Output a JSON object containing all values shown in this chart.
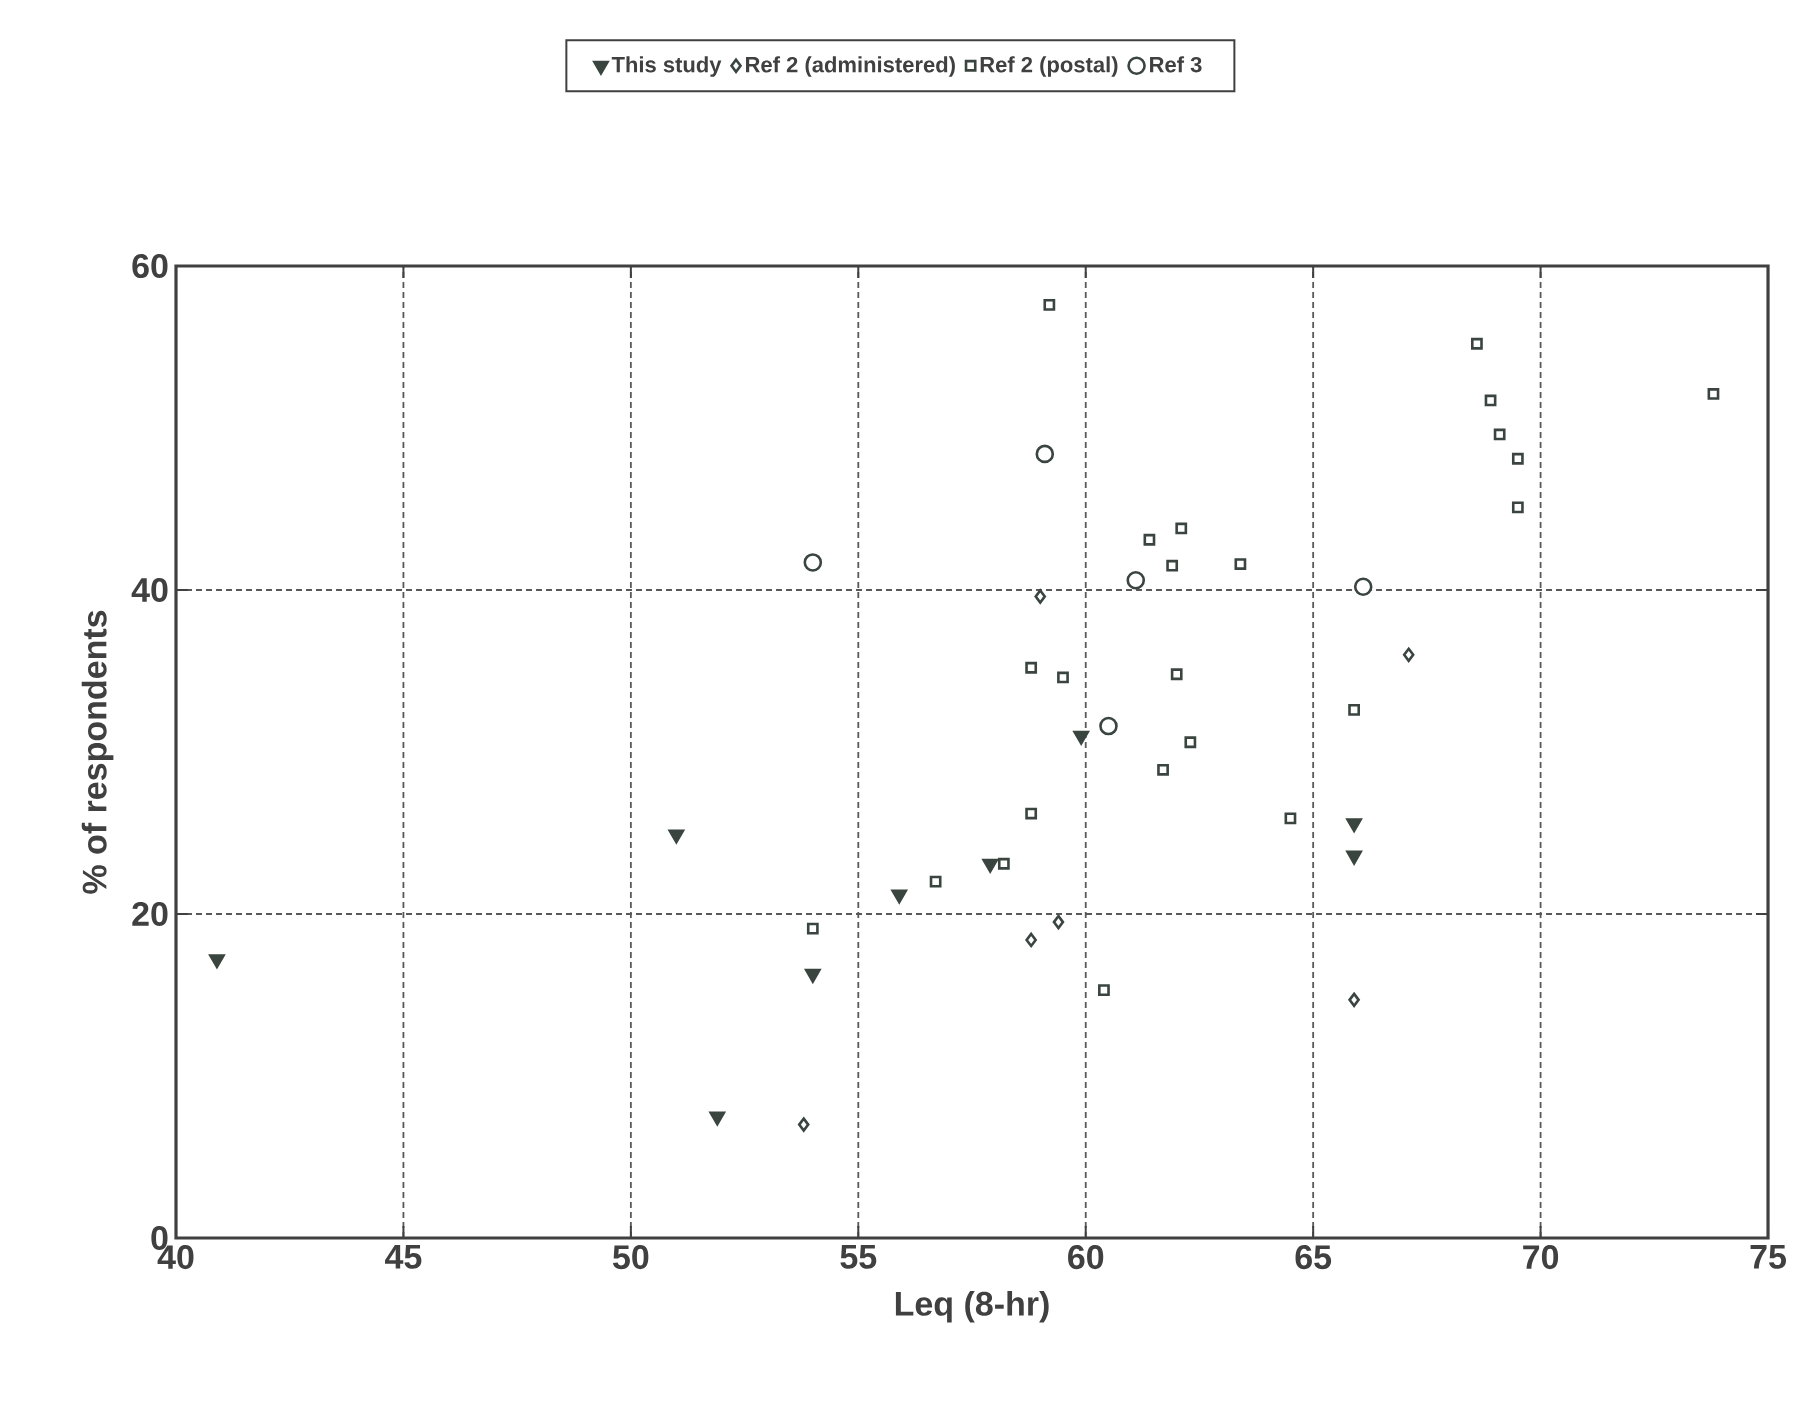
{
  "chart_data": {
    "type": "scatter",
    "xlabel": "Leq (8-hr)",
    "ylabel": "% of respondents",
    "xlim": [
      40,
      75
    ],
    "xticks": [
      40,
      45,
      50,
      55,
      60,
      65,
      70,
      75
    ],
    "ylim": [
      0,
      60
    ],
    "yticks": [
      0,
      20,
      40,
      60
    ],
    "grid": true,
    "legend": "top",
    "series": [
      {
        "name": "This study",
        "color": "#3a4540",
        "marker": "triangle",
        "x": [
          40.9,
          51.0,
          51.9,
          54.0,
          55.9,
          57.9,
          59.9,
          65.9,
          65.9
        ],
        "values": [
          17.2,
          24.9,
          7.5,
          16.3,
          21.2,
          23.1,
          31.0,
          25.6,
          23.6
        ]
      },
      {
        "name": "Ref 2 (administered)",
        "color": "#3a4540",
        "marker": "diamond",
        "x": [
          53.8,
          58.8,
          59.4,
          59.0,
          67.1,
          65.9
        ],
        "values": [
          7.0,
          18.4,
          19.5,
          39.6,
          36.0,
          14.7
        ]
      },
      {
        "name": "Ref 2 (postal)",
        "color": "#3a4540",
        "marker": "square",
        "x": [
          54.0,
          56.7,
          58.2,
          59.2,
          68.6,
          73.8,
          68.9,
          69.1,
          69.5,
          69.5,
          61.4,
          62.1,
          61.9,
          63.4,
          58.8,
          59.5,
          62.0,
          65.9,
          62.3,
          61.7,
          58.8,
          64.5,
          60.4
        ],
        "values": [
          19.1,
          22.0,
          23.1,
          57.6,
          55.2,
          52.1,
          51.7,
          49.6,
          48.1,
          45.1,
          43.1,
          43.8,
          41.5,
          41.6,
          35.2,
          34.6,
          34.8,
          32.6,
          30.6,
          28.9,
          26.2,
          25.9,
          15.3
        ]
      },
      {
        "name": "Ref 3",
        "color": "#3a4540",
        "marker": "circle",
        "x": [
          54.0,
          59.1,
          61.1,
          60.5,
          66.1
        ],
        "values": [
          41.7,
          48.4,
          40.6,
          31.6,
          40.2
        ]
      }
    ]
  }
}
